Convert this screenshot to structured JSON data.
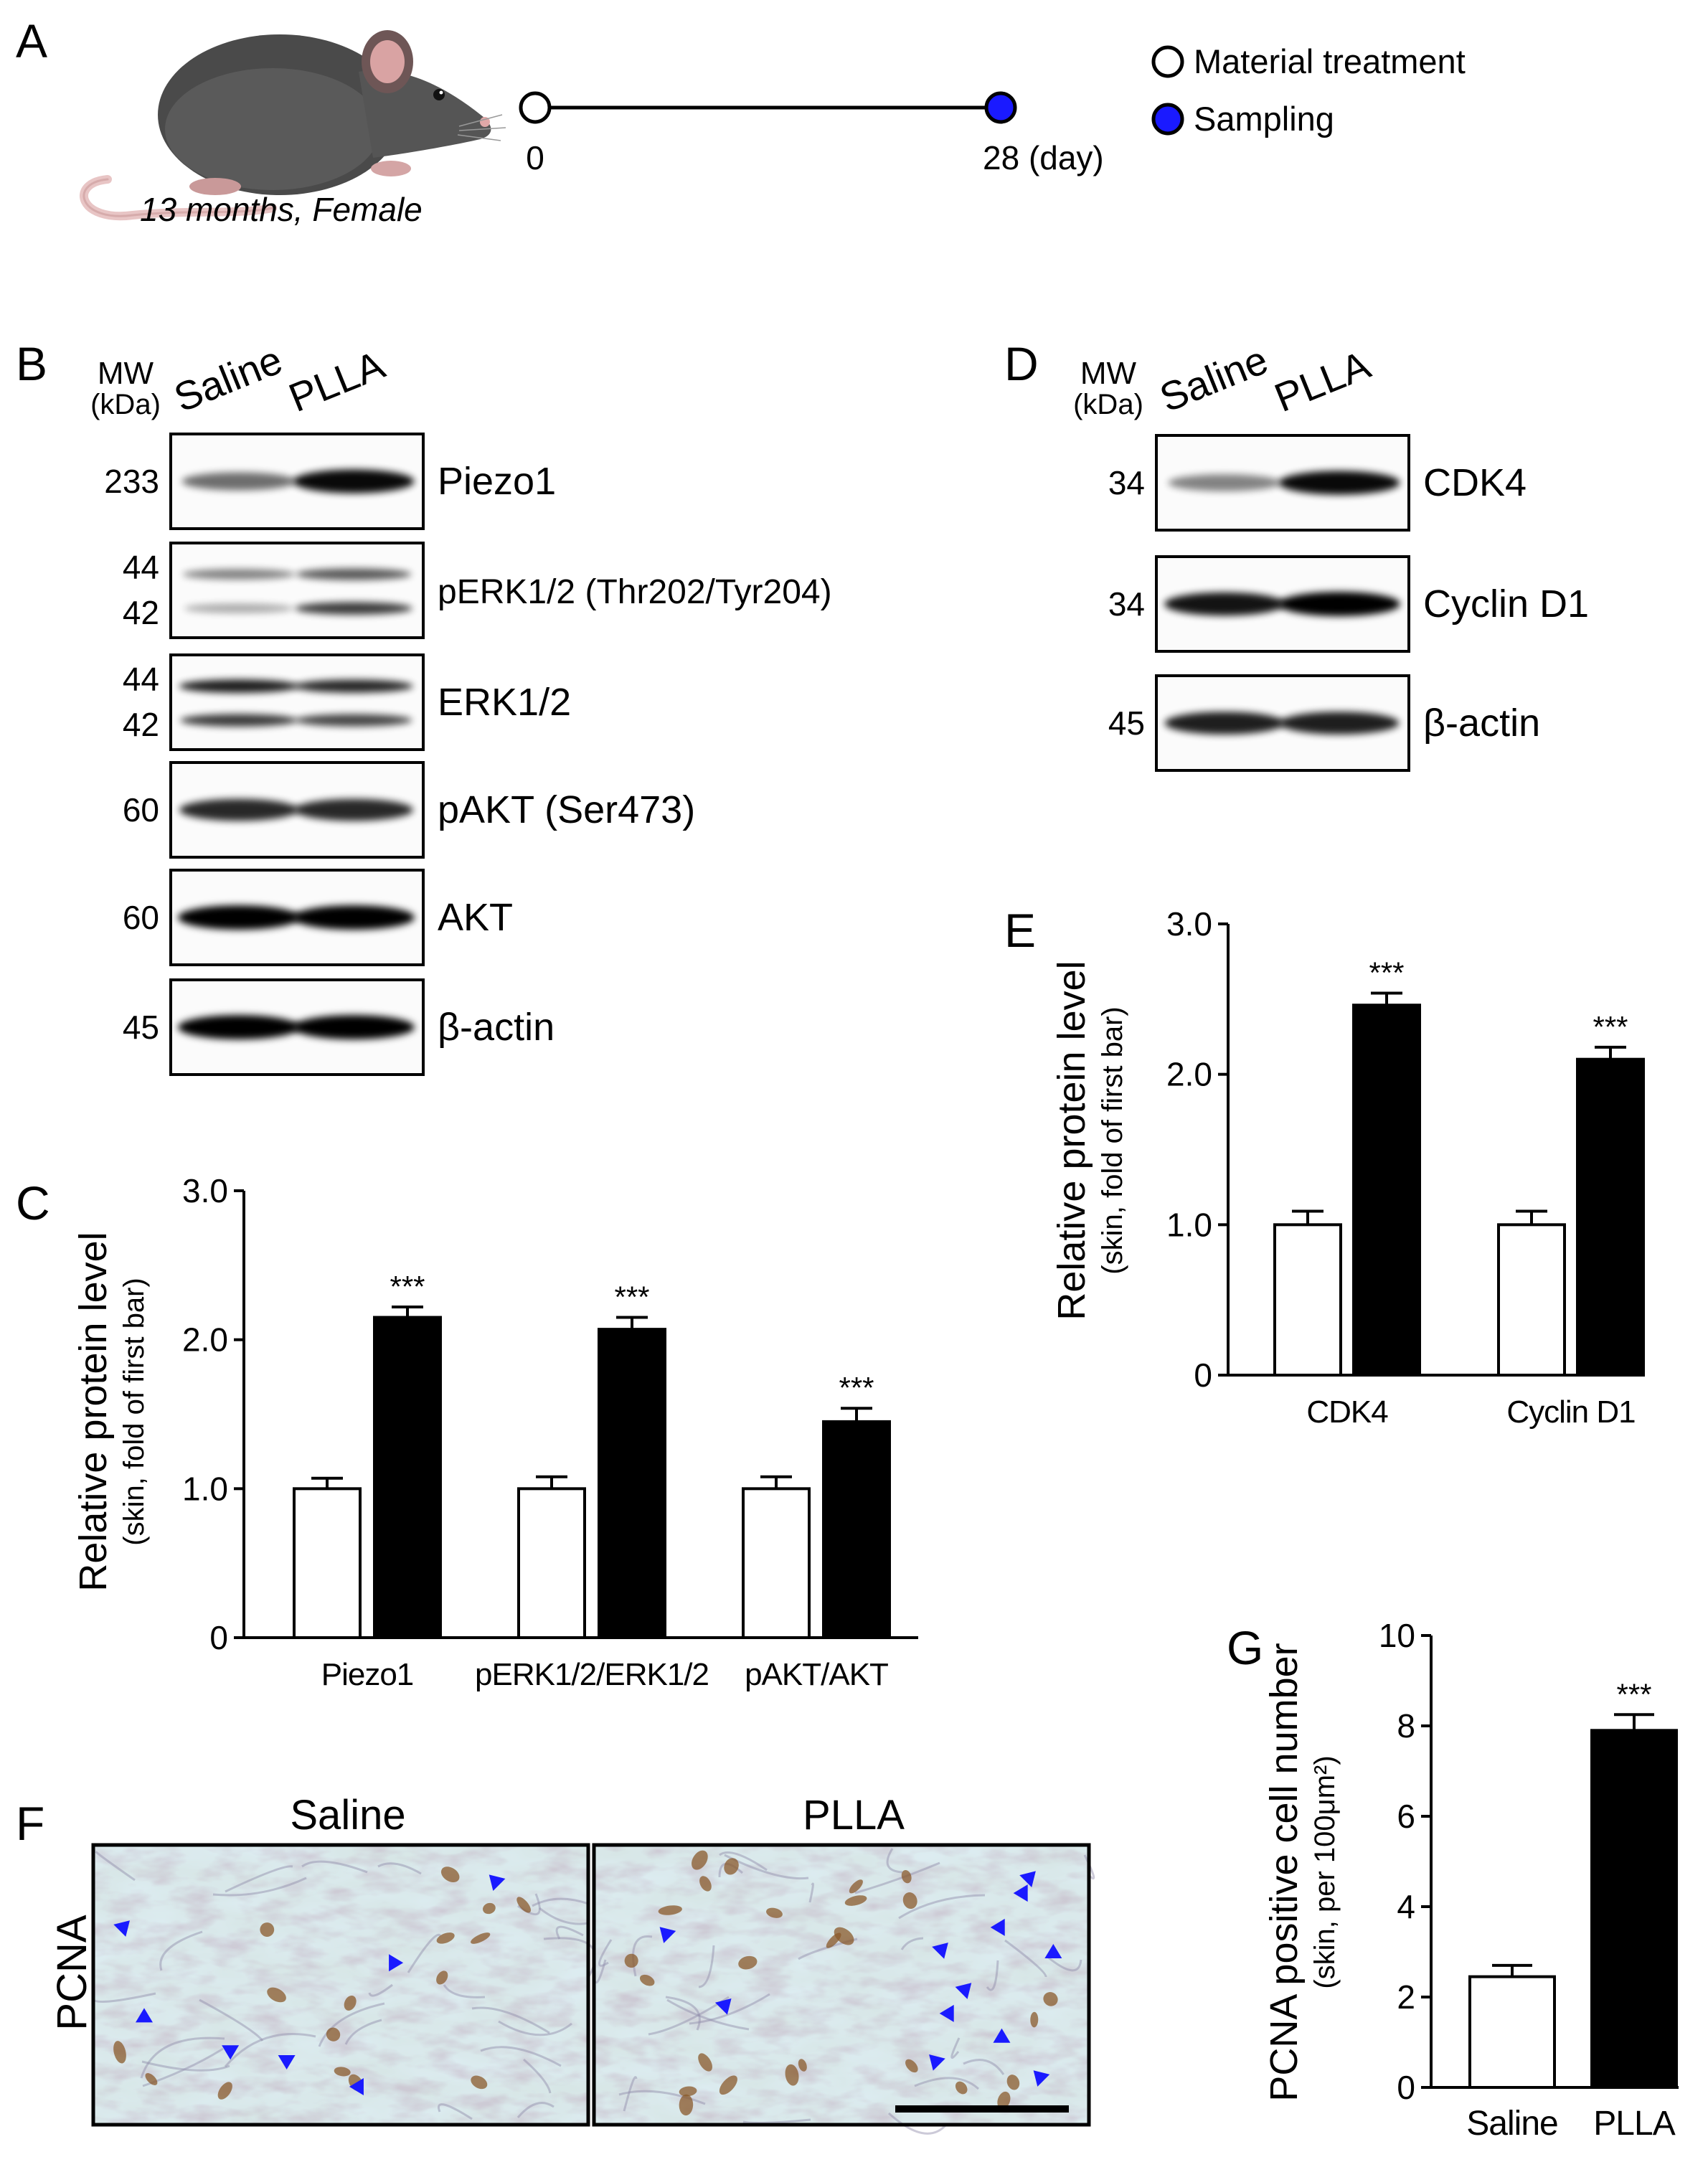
{
  "panel_letters": {
    "A": "A",
    "B": "B",
    "C": "C",
    "D": "D",
    "E": "E",
    "F": "F",
    "G": "G"
  },
  "timeline": {
    "mouse_caption": "13 months, Female",
    "start_label": "0",
    "end_label": "28 (day)",
    "legend": [
      {
        "label": "Material treatment",
        "color": "#ffffff"
      },
      {
        "label": "Sampling",
        "color": "#1a1aff"
      }
    ]
  },
  "blot_b": {
    "mw_header": [
      "MW",
      "(kDa)"
    ],
    "lanes": [
      "Saline",
      "PLLA"
    ],
    "rows": [
      {
        "label": "Piezo1",
        "mw": [
          "233"
        ],
        "bands": [
          [
            0.45,
            0.95
          ]
        ]
      },
      {
        "label": "pERK1/2 (Thr202/Tyr204)",
        "mw": [
          "44",
          "42"
        ],
        "bands": [
          [
            0.35,
            0.55
          ],
          [
            0.15,
            0.7
          ]
        ]
      },
      {
        "label": "ERK1/2",
        "mw": [
          "44",
          "42"
        ],
        "bands": [
          [
            0.85,
            0.8
          ],
          [
            0.7,
            0.65
          ]
        ]
      },
      {
        "label": "pAKT (Ser473)",
        "mw": [
          "60"
        ],
        "bands": [
          [
            0.8,
            0.8
          ]
        ]
      },
      {
        "label": "AKT",
        "mw": [
          "60"
        ],
        "bands": [
          [
            1.0,
            1.0
          ]
        ]
      },
      {
        "label": "β-actin",
        "mw": [
          "45"
        ],
        "bands": [
          [
            1.0,
            1.0
          ]
        ]
      }
    ]
  },
  "blot_d": {
    "mw_header": [
      "MW",
      "(kDa)"
    ],
    "lanes": [
      "Saline",
      "PLLA"
    ],
    "rows": [
      {
        "label": "CDK4",
        "mw": [
          "34"
        ],
        "bands": [
          [
            0.35,
            0.95
          ]
        ]
      },
      {
        "label": "Cyclin D1",
        "mw": [
          "34"
        ],
        "bands": [
          [
            0.9,
            1.0
          ]
        ]
      },
      {
        "label": "β-actin",
        "mw": [
          "45"
        ],
        "bands": [
          [
            0.85,
            0.85
          ]
        ]
      }
    ]
  },
  "chart_data": [
    {
      "panel": "C",
      "type": "bar",
      "categories": [
        "Piezo1",
        "pERK1/2/ERK1/2",
        "pAKT/AKT"
      ],
      "series": [
        {
          "values": [
            1.0,
            1.0,
            1.0
          ],
          "errors": [
            0.07,
            0.08,
            0.08
          ],
          "color": "#ffffff"
        },
        {
          "values": [
            2.15,
            2.07,
            1.45
          ],
          "errors": [
            0.07,
            0.08,
            0.09
          ],
          "color": "#000000"
        }
      ],
      "annotations": [
        "",
        "",
        "",
        "***",
        "***",
        "***"
      ],
      "ylabel": "Relative protein level",
      "ylabel2": "(skin, fold of first bar)",
      "ylim": [
        0,
        3.0
      ],
      "yticks": [
        "0",
        "1.0",
        "2.0",
        "3.0"
      ]
    },
    {
      "panel": "E",
      "type": "bar",
      "categories": [
        "CDK4",
        "Cyclin D1"
      ],
      "series": [
        {
          "values": [
            1.0,
            1.0
          ],
          "errors": [
            0.09,
            0.09
          ],
          "color": "#ffffff"
        },
        {
          "values": [
            2.46,
            2.1
          ],
          "errors": [
            0.08,
            0.08
          ],
          "color": "#000000"
        }
      ],
      "annotations": [
        "",
        "",
        "***",
        "***"
      ],
      "ylabel": "Relative protein level",
      "ylabel2": "(skin, fold of first bar)",
      "ylim": [
        0,
        3.0
      ],
      "yticks": [
        "0",
        "1.0",
        "2.0",
        "3.0"
      ]
    },
    {
      "panel": "G",
      "type": "bar",
      "categories": [
        "Saline",
        "PLLA"
      ],
      "series": [
        {
          "values": [
            2.45,
            7.9
          ],
          "errors": [
            0.25,
            0.35
          ],
          "colors": [
            "#ffffff",
            "#000000"
          ]
        }
      ],
      "annotations": [
        "",
        "***"
      ],
      "ylabel": "PCNA positive cell number",
      "ylabel2": "(skin, per 100μm²)",
      "ylim": [
        0,
        10
      ],
      "yticks": [
        "0",
        "2",
        "4",
        "6",
        "8",
        "10"
      ]
    }
  ],
  "histology": {
    "row_label": "PCNA",
    "panels": [
      {
        "title": "Saline",
        "arrow_count": 7
      },
      {
        "title": "PLLA",
        "arrow_count": 12
      }
    ],
    "arrow_color": "#1a1aff",
    "scale_bar": true
  }
}
